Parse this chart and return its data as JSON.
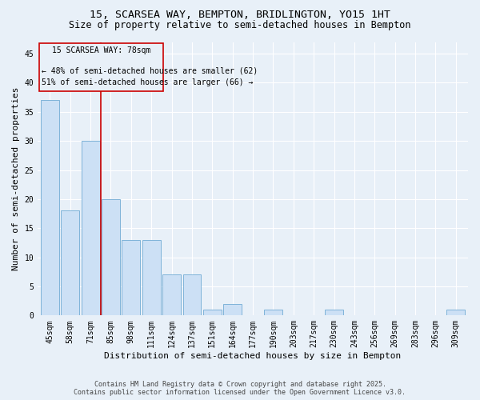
{
  "title1": "15, SCARSEA WAY, BEMPTON, BRIDLINGTON, YO15 1HT",
  "title2": "Size of property relative to semi-detached houses in Bempton",
  "xlabel": "Distribution of semi-detached houses by size in Bempton",
  "ylabel": "Number of semi-detached properties",
  "categories": [
    "45sqm",
    "58sqm",
    "71sqm",
    "85sqm",
    "98sqm",
    "111sqm",
    "124sqm",
    "137sqm",
    "151sqm",
    "164sqm",
    "177sqm",
    "190sqm",
    "203sqm",
    "217sqm",
    "230sqm",
    "243sqm",
    "256sqm",
    "269sqm",
    "283sqm",
    "296sqm",
    "309sqm"
  ],
  "values": [
    37,
    18,
    30,
    20,
    13,
    13,
    7,
    7,
    1,
    2,
    0,
    1,
    0,
    0,
    1,
    0,
    0,
    0,
    0,
    0,
    1
  ],
  "bar_color": "#cce0f5",
  "bar_edge_color": "#7fb3d9",
  "ylim": [
    0,
    47
  ],
  "yticks": [
    0,
    5,
    10,
    15,
    20,
    25,
    30,
    35,
    40,
    45
  ],
  "vline_x": 2.5,
  "annotation_title": "15 SCARSEA WAY: 78sqm",
  "annotation_line1": "← 48% of semi-detached houses are smaller (62)",
  "annotation_line2": "51% of semi-detached houses are larger (66) →",
  "footer1": "Contains HM Land Registry data © Crown copyright and database right 2025.",
  "footer2": "Contains public sector information licensed under the Open Government Licence v3.0.",
  "bg_color": "#e8f0f8",
  "vline_color": "#cc0000",
  "box_color": "#cc0000",
  "title_fontsize": 9.5,
  "subtitle_fontsize": 8.5,
  "axis_label_fontsize": 8,
  "tick_fontsize": 7,
  "annotation_fontsize": 7,
  "footer_fontsize": 6
}
